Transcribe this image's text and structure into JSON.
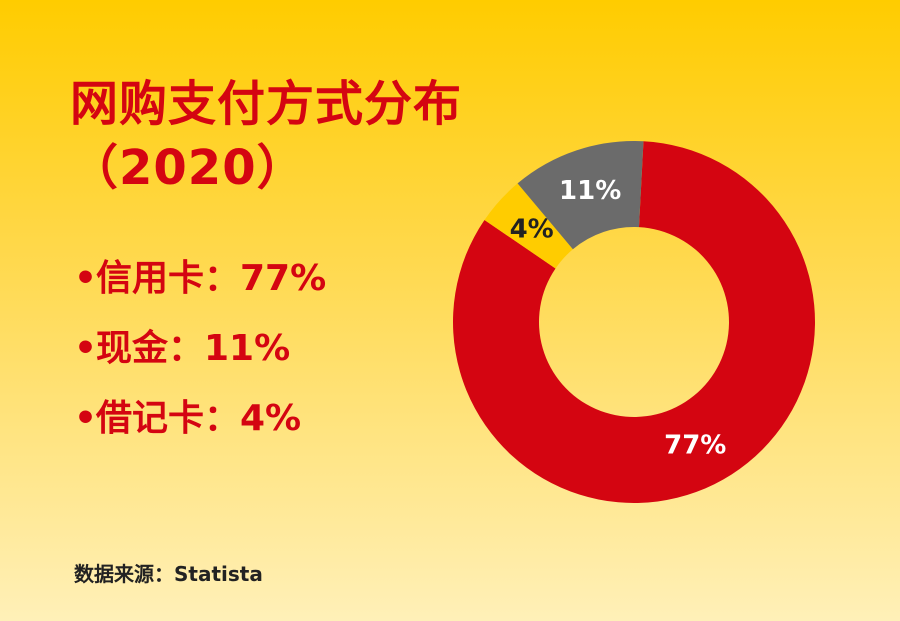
{
  "title_line1": "网购支付方式分布",
  "title_line2": "（2020）",
  "legend": [
    {
      "bullet": "•",
      "text": "信用卡：77%"
    },
    {
      "bullet": "•",
      "text": "现金：11%"
    },
    {
      "bullet": "•",
      "text": "借记卡：4%"
    }
  ],
  "source": "数据来源：Statista",
  "colors": {
    "accent": "#D40511",
    "background_top": "#FFCC00",
    "background_bottom": "#FFF0B8",
    "gray": "#6B6B6B",
    "yellow": "#FFCC00"
  },
  "chart_data": {
    "type": "pie",
    "variant": "donut",
    "title": "",
    "slices": [
      {
        "label": "信用卡",
        "value": 77,
        "display": "77%",
        "color": "#D40511",
        "text_color": "#FFFFFF"
      },
      {
        "label": "借记卡",
        "value": 4,
        "display": "4%",
        "color": "#FFCC00",
        "text_color": "#222222"
      },
      {
        "label": "现金",
        "value": 11,
        "display": "11%",
        "color": "#6B6B6B",
        "text_color": "#FFFFFF"
      }
    ]
  }
}
